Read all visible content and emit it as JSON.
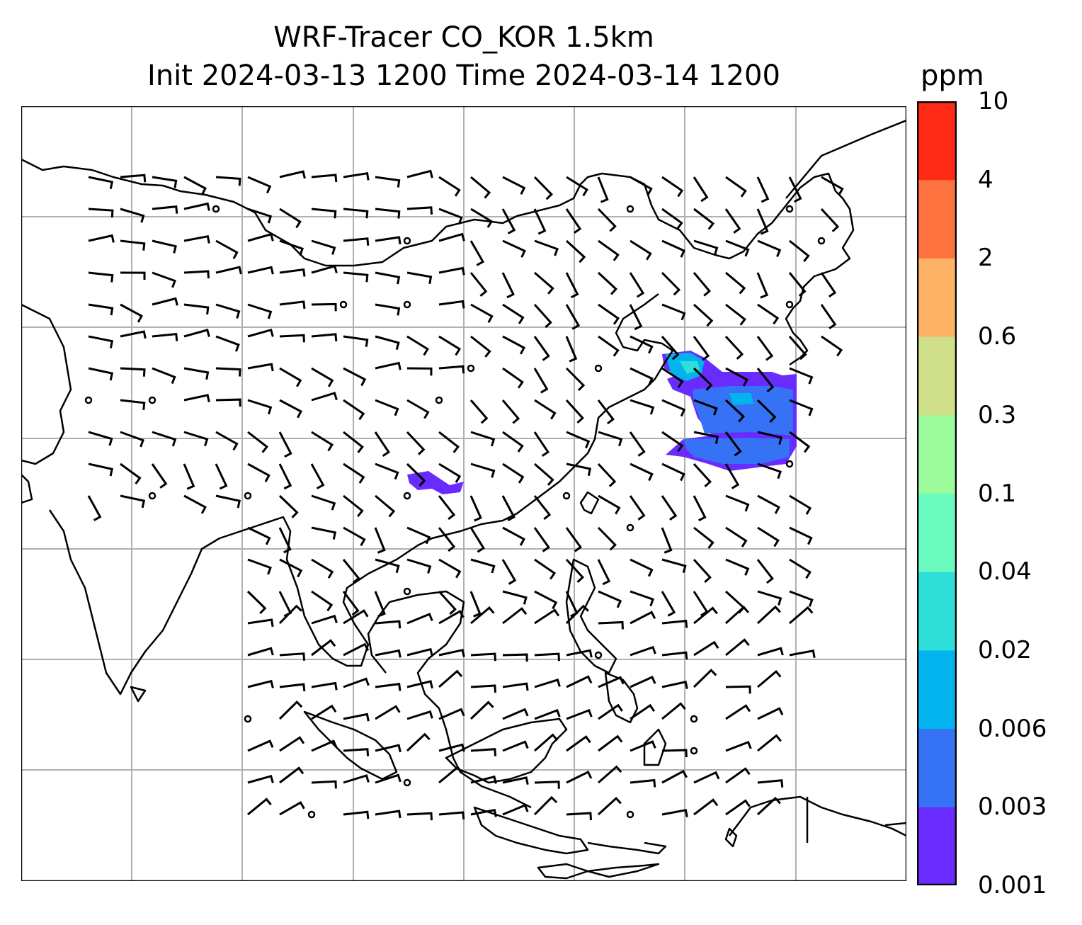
{
  "title": {
    "line1": "WRF-Tracer CO_KOR 1.5km",
    "line2": "Init 2024-03-13 1200 Time 2024-03-14 1200"
  },
  "colorbar": {
    "unit": "ppm",
    "levels": [
      "0.001",
      "0.003",
      "0.006",
      "0.02",
      "0.04",
      "0.1",
      "0.3",
      "0.6",
      "2",
      "4",
      "10"
    ],
    "colors": [
      "#6a2bff",
      "#3572f5",
      "#02b3ed",
      "#2fdfd7",
      "#69fbbf",
      "#9cfb9b",
      "#d0e08a",
      "#fdb265",
      "#fe7240",
      "#fe2a15"
    ]
  },
  "map": {
    "projection": "lat-lon",
    "gridlines": true,
    "coastlines": true,
    "wind_barbs": true,
    "tracer_field": "CO_KOR",
    "tracer_plume_color": "#3572f5"
  }
}
